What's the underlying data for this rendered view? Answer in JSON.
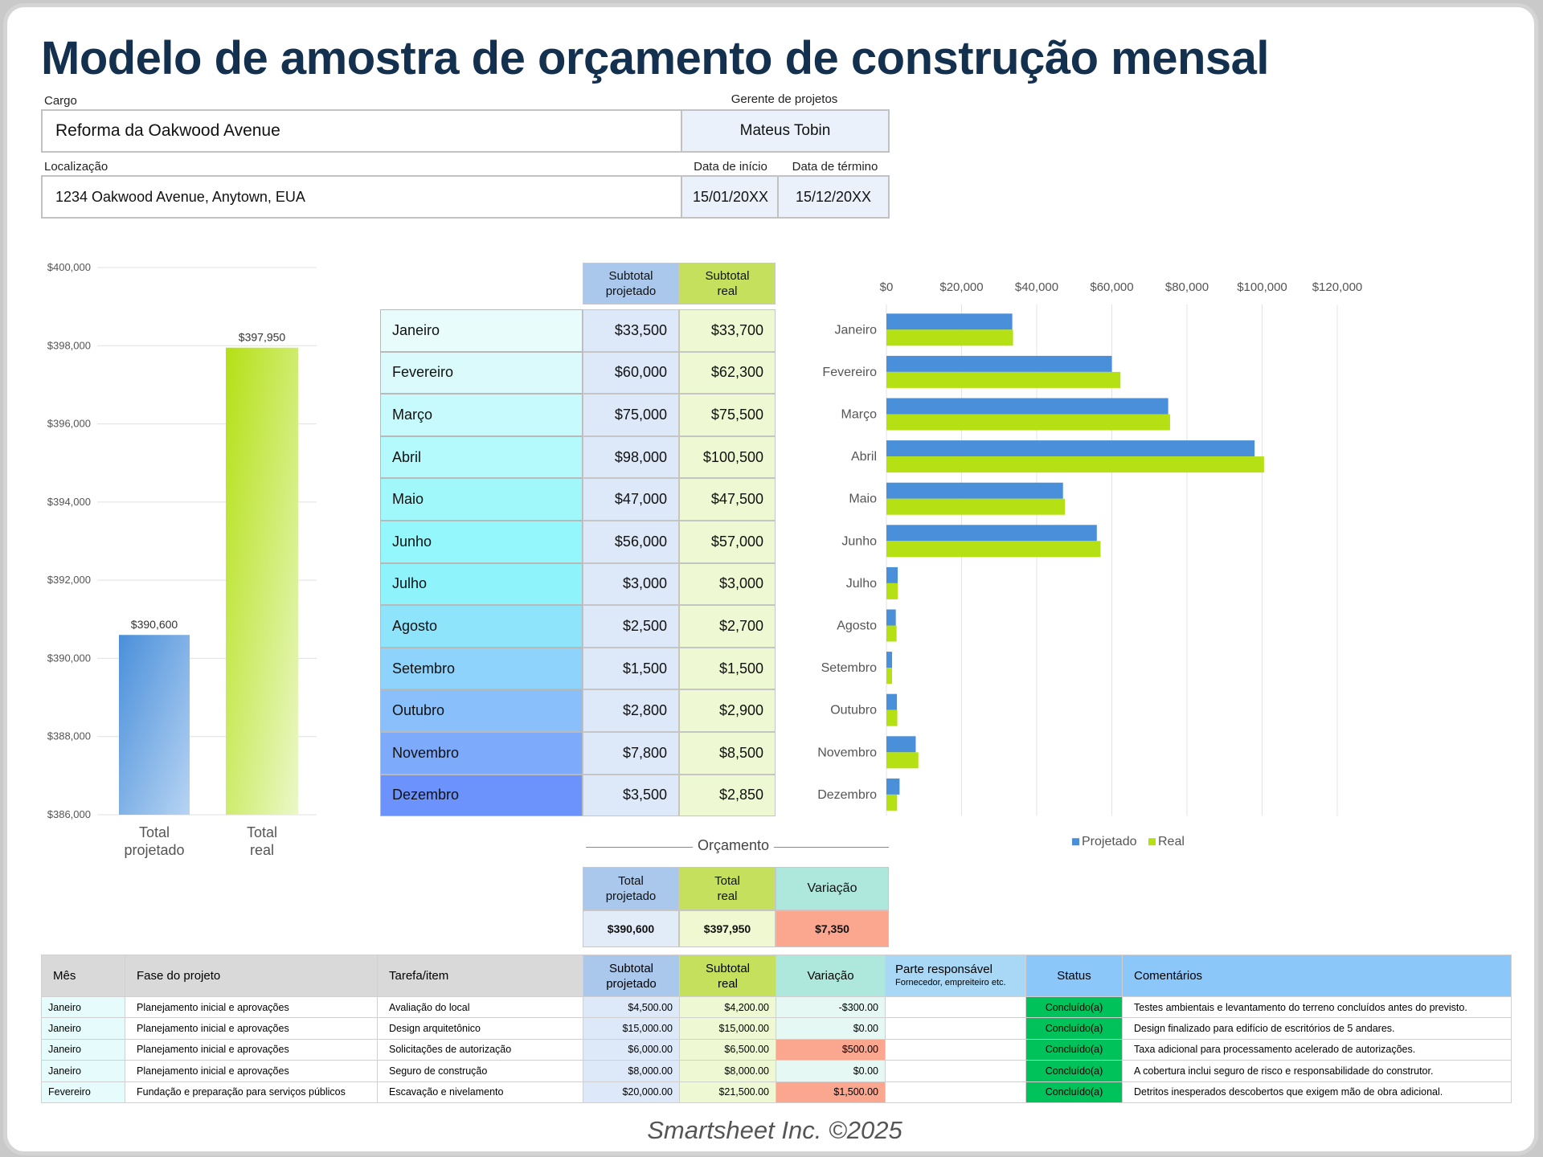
{
  "title": "Modelo de amostra de orçamento de construção mensal",
  "project": {
    "cargo_label": "Cargo",
    "cargo_value": "Reforma da Oakwood Avenue",
    "manager_label": "Gerente de projetos",
    "manager_value": "Mateus Tobin",
    "location_label": "Localização",
    "location_value": "1234 Oakwood Avenue, Anytown, EUA",
    "start_label": "Data de início",
    "start_value": "15/01/20XX",
    "end_label": "Data de término",
    "end_value": "15/12/20XX"
  },
  "monthly": {
    "header_projected": "Subtotal projetado",
    "header_real": "Subtotal real",
    "rows": [
      {
        "month": "Janeiro",
        "projected": "$33,500",
        "real": "$33,700"
      },
      {
        "month": "Fevereiro",
        "projected": "$60,000",
        "real": "$62,300"
      },
      {
        "month": "Março",
        "projected": "$75,000",
        "real": "$75,500"
      },
      {
        "month": "Abril",
        "projected": "$98,000",
        "real": "$100,500"
      },
      {
        "month": "Maio",
        "projected": "$47,000",
        "real": "$47,500"
      },
      {
        "month": "Junho",
        "projected": "$56,000",
        "real": "$57,000"
      },
      {
        "month": "Julho",
        "projected": "$3,000",
        "real": "$3,000"
      },
      {
        "month": "Agosto",
        "projected": "$2,500",
        "real": "$2,700"
      },
      {
        "month": "Setembro",
        "projected": "$1,500",
        "real": "$1,500"
      },
      {
        "month": "Outubro",
        "projected": "$2,800",
        "real": "$2,900"
      },
      {
        "month": "Novembro",
        "projected": "$7,800",
        "real": "$8,500"
      },
      {
        "month": "Dezembro",
        "projected": "$3,500",
        "real": "$2,850"
      }
    ]
  },
  "budget": {
    "caption": "Orçamento",
    "h_projected": "Total projetado",
    "h_real": "Total real",
    "h_variation": "Variação",
    "projected": "$390,600",
    "real": "$397,950",
    "variation": "$7,350"
  },
  "details": {
    "headers": {
      "month": "Mês",
      "phase": "Fase do projeto",
      "task": "Tarefa/item",
      "projected": "Subtotal projetado",
      "real": "Subtotal real",
      "variation": "Variação",
      "party": "Parte responsável",
      "party_sub": "Fornecedor, empreiteiro etc.",
      "status": "Status",
      "comments": "Comentários"
    },
    "rows": [
      {
        "month": "Janeiro",
        "phase": "Planejamento inicial e aprovações",
        "task": "Avaliação do local",
        "projected": "$4,500.00",
        "real": "$4,200.00",
        "variation": "-$300.00",
        "party": "",
        "status": "Concluído(a)",
        "comment": "Testes ambientais e levantamento do terreno concluídos antes do previsto."
      },
      {
        "month": "Janeiro",
        "phase": "Planejamento inicial e aprovações",
        "task": "Design arquitetônico",
        "projected": "$15,000.00",
        "real": "$15,000.00",
        "variation": "$0.00",
        "party": "",
        "status": "Concluído(a)",
        "comment": "Design finalizado para edifício de escritórios de 5 andares."
      },
      {
        "month": "Janeiro",
        "phase": "Planejamento inicial e aprovações",
        "task": "Solicitações de autorização",
        "projected": "$6,000.00",
        "real": "$6,500.00",
        "variation": "$500.00",
        "party": "",
        "status": "Concluído(a)",
        "comment": "Taxa adicional para processamento acelerado de autorizações."
      },
      {
        "month": "Janeiro",
        "phase": "Planejamento inicial e aprovações",
        "task": "Seguro de construção",
        "projected": "$8,000.00",
        "real": "$8,000.00",
        "variation": "$0.00",
        "party": "",
        "status": "Concluído(a)",
        "comment": "A cobertura inclui seguro de risco e responsabilidade do construtor."
      },
      {
        "month": "Fevereiro",
        "phase": "Fundação e preparação para serviços públicos",
        "task": "Escavação e nivelamento",
        "projected": "$20,000.00",
        "real": "$21,500.00",
        "variation": "$1,500.00",
        "party": "",
        "status": "Concluído(a)",
        "comment": "Detritos inesperados descobertos que exigem mão de obra adicional."
      }
    ]
  },
  "colors": {
    "projected": "#4a8fda",
    "real": "#b4e014",
    "variation_over": "#fba68f",
    "status_done": "#00c25a"
  },
  "chart_data": [
    {
      "type": "bar",
      "categories": [
        "Total projetado",
        "Total real"
      ],
      "values": [
        390600,
        397950
      ],
      "data_labels": [
        "$390,600",
        "$397,950"
      ],
      "ylim": [
        386000,
        400000
      ],
      "yticks": [
        "$386,000",
        "$388,000",
        "$390,000",
        "$392,000",
        "$394,000",
        "$396,000",
        "$398,000",
        "$400,000"
      ],
      "grid": true
    },
    {
      "type": "bar",
      "orientation": "horizontal",
      "categories": [
        "Janeiro",
        "Fevereiro",
        "Março",
        "Abril",
        "Maio",
        "Junho",
        "Julho",
        "Agosto",
        "Setembro",
        "Outubro",
        "Novembro",
        "Dezembro"
      ],
      "series": [
        {
          "name": "Projetado",
          "values": [
            33500,
            60000,
            75000,
            98000,
            47000,
            56000,
            3000,
            2500,
            1500,
            2800,
            7800,
            3500
          ]
        },
        {
          "name": "Real",
          "values": [
            33700,
            62300,
            75500,
            100500,
            47500,
            57000,
            3000,
            2700,
            1500,
            2900,
            8500,
            2850
          ]
        }
      ],
      "xlim": [
        0,
        120000
      ],
      "xticks": [
        "$0",
        "$20,000",
        "$40,000",
        "$60,000",
        "$80,000",
        "$100,000",
        "$120,000"
      ],
      "legend": "bottom",
      "grid": true
    }
  ]
}
